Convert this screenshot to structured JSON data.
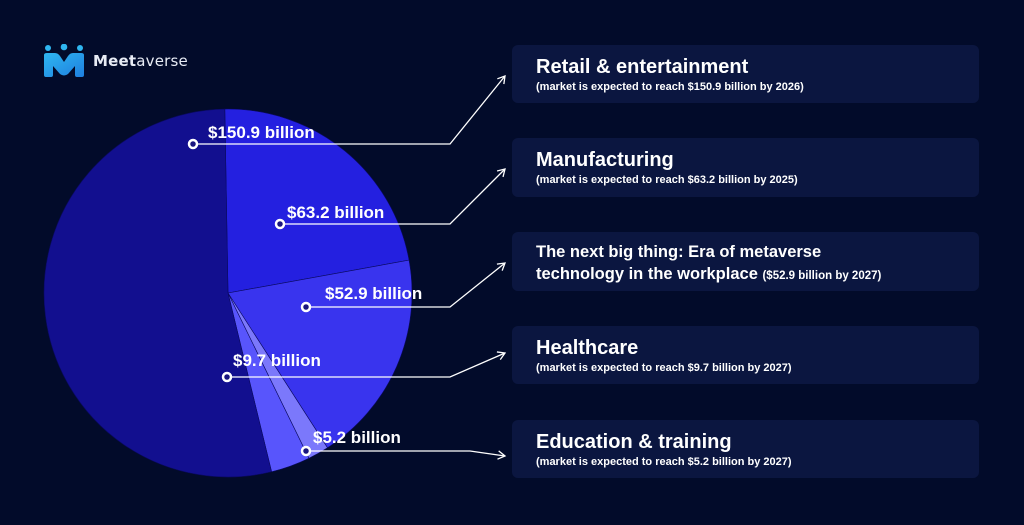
{
  "logo": {
    "brand_bold": "Meet",
    "brand_rest": "averse"
  },
  "colors": {
    "background": "#020b2a",
    "card": "#0b1640",
    "line": "#ffffff"
  },
  "chart_data": {
    "type": "pie",
    "title": "",
    "slices": [
      {
        "label": "Manufacturing",
        "value": 63.2,
        "value_label": "$63.2 billion",
        "color": "#2420e0"
      },
      {
        "label": "The next big thing: Era of metaverse technology in the workplace",
        "value": 52.9,
        "value_label": "$52.9 billion",
        "color": "#3934ee"
      },
      {
        "label": "Education & training",
        "value": 5.2,
        "value_label": "$5.2 billion",
        "color": "#7b78fb"
      },
      {
        "label": "Healthcare",
        "value": 9.7,
        "value_label": "$9.7 billion",
        "color": "#5855fc"
      },
      {
        "label": "Retail & entertainment",
        "value": 150.9,
        "value_label": "$150.9 billion",
        "color": "#120f8f"
      }
    ]
  },
  "cards": [
    {
      "title": "Retail & entertainment",
      "sub": "(market is expected to reach $150.9 billion by 2026)"
    },
    {
      "title": "Manufacturing",
      "sub": "(market is expected to reach $63.2 billion by 2025)"
    },
    {
      "title_line1": "The next big thing: Era of metaverse",
      "title_line2": "technology in the workplace",
      "sub": "($52.9 billion by 2027)"
    },
    {
      "title": "Healthcare",
      "sub": "(market is expected to reach $9.7 billion by 2027)"
    },
    {
      "title": "Education & training",
      "sub": "(market is expected to reach $5.2 billion by 2027)"
    }
  ]
}
